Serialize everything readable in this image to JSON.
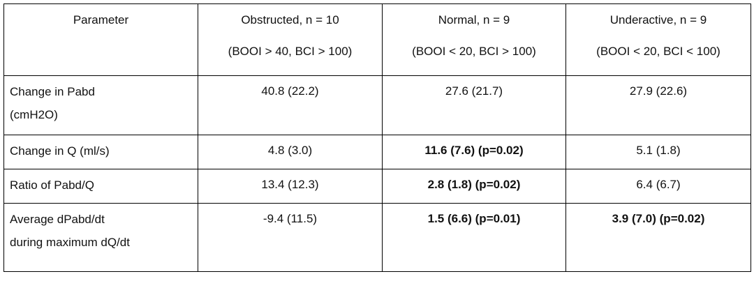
{
  "table": {
    "header": [
      [
        "Parameter"
      ],
      [
        "Obstructed, n = 10",
        "(BOOI > 40, BCI > 100)"
      ],
      [
        "Normal, n = 9",
        "(BOOI < 20, BCI > 100)"
      ],
      [
        "Underactive, n = 9",
        "(BOOI < 20, BCI < 100)"
      ]
    ],
    "rows": [
      [
        [
          "Change in Pabd",
          "(cmH2O)"
        ],
        "40.8 (22.2)",
        "27.6 (21.7)",
        "27.9 (22.6)"
      ],
      [
        [
          "Change in Q (ml/s)"
        ],
        "4.8 (3.0)",
        "11.6 (7.6) (p=0.02)",
        "5.1 (1.8)"
      ],
      [
        [
          "Ratio of Pabd/Q"
        ],
        "13.4 (12.3)",
        "2.8 (1.8) (p=0.02)",
        "6.4 (6.7)"
      ],
      [
        [
          "Average dPabd/dt",
          "during maximum dQ/dt"
        ],
        "-9.4 (11.5)",
        "1.5 (6.6) (p=0.01)",
        "3.9 (7.0) (p=0.02)"
      ]
    ]
  }
}
